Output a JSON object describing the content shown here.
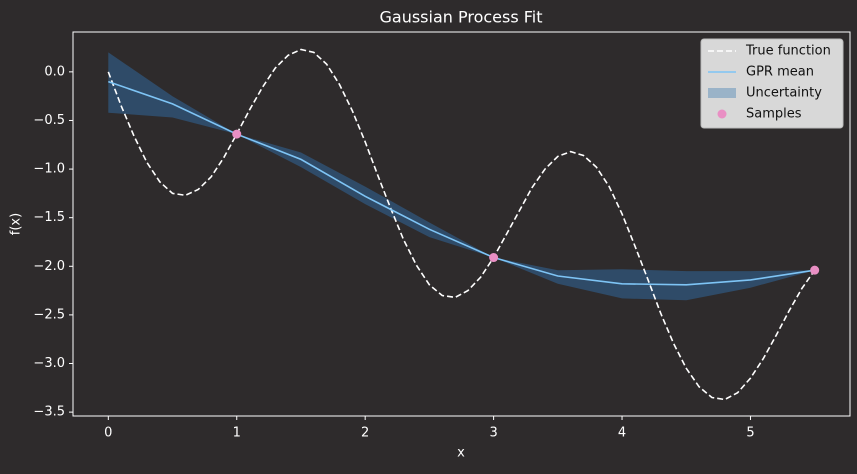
{
  "chart_data": {
    "type": "line",
    "title": "Gaussian Process Fit",
    "xlabel": "x",
    "ylabel": "f(x)",
    "xlim": [
      -0.275,
      5.775
    ],
    "ylim": [
      -3.54,
      0.41
    ],
    "xticks": [
      0,
      1,
      2,
      3,
      4,
      5
    ],
    "yticks": [
      {
        "value": 0,
        "label": "0.0"
      },
      {
        "value": -0.5,
        "label": "−0.5"
      },
      {
        "value": -1,
        "label": "−1.0"
      },
      {
        "value": -1.5,
        "label": "−1.5"
      },
      {
        "value": -2,
        "label": "−2.0"
      },
      {
        "value": -2.5,
        "label": "−2.5"
      },
      {
        "value": -3,
        "label": "−3.0"
      },
      {
        "value": -3.5,
        "label": "−3.5"
      }
    ],
    "legend": "upper right",
    "series": [
      {
        "name": "True function",
        "style": "dashed",
        "color": "#ffffff",
        "x": [
          0,
          0.1,
          0.2,
          0.3,
          0.4,
          0.5,
          0.6,
          0.7,
          0.8,
          0.9,
          1,
          1.1,
          1.2,
          1.3,
          1.4,
          1.5,
          1.6,
          1.7,
          1.8,
          1.9,
          2,
          2.1,
          2.2,
          2.3,
          2.4,
          2.5,
          2.6,
          2.7,
          2.8,
          2.9,
          3,
          3.1,
          3.2,
          3.3,
          3.4,
          3.5,
          3.6,
          3.7,
          3.8,
          3.9,
          4,
          4.1,
          4.2,
          4.3,
          4.4,
          4.5,
          4.6,
          4.7,
          4.8,
          4.9,
          5,
          5.1,
          5.2,
          5.3,
          5.4,
          5.5
        ],
        "values": [
          0,
          -0.35,
          -0.66,
          -0.93,
          -1.13,
          -1.25,
          -1.27,
          -1.21,
          -1.08,
          -0.88,
          -0.64,
          -0.39,
          -0.16,
          0.04,
          0.17,
          0.23,
          0.2,
          0.08,
          -0.13,
          -0.4,
          -0.72,
          -1.07,
          -1.41,
          -1.73,
          -1.99,
          -2.19,
          -2.3,
          -2.32,
          -2.25,
          -2.11,
          -1.91,
          -1.67,
          -1.43,
          -1.19,
          -1,
          -0.87,
          -0.82,
          -0.86,
          -0.98,
          -1.18,
          -1.46,
          -1.79,
          -2.13,
          -2.48,
          -2.79,
          -3.05,
          -3.24,
          -3.35,
          -3.37,
          -3.3,
          -3.15,
          -2.95,
          -2.71,
          -2.46,
          -2.23,
          -2.04
        ]
      },
      {
        "name": "GPR mean",
        "style": "line",
        "color": "#7ec4f5",
        "x": [
          0,
          0.5,
          1,
          1.5,
          2,
          2.5,
          3,
          3.5,
          4,
          4.5,
          5,
          5.5
        ],
        "values": [
          -0.1,
          -0.33,
          -0.64,
          -0.9,
          -1.28,
          -1.62,
          -1.91,
          -2.1,
          -2.18,
          -2.19,
          -2.14,
          -2.04
        ]
      },
      {
        "name": "Uncertainty",
        "style": "band",
        "color": "#2f5478",
        "x": [
          0,
          0.5,
          1,
          1.5,
          2,
          2.5,
          3,
          3.5,
          4,
          4.5,
          5,
          5.5
        ],
        "upper": [
          0.2,
          -0.25,
          -0.64,
          -0.83,
          -1.18,
          -1.55,
          -1.91,
          -2.04,
          -2.03,
          -2.05,
          -2.05,
          -2.04
        ],
        "lower": [
          -0.42,
          -0.47,
          -0.64,
          -0.98,
          -1.36,
          -1.7,
          -1.91,
          -2.18,
          -2.33,
          -2.35,
          -2.22,
          -2.04
        ]
      },
      {
        "name": "Samples",
        "style": "markers",
        "color": "#e98fc4",
        "x": [
          1,
          3,
          5.5
        ],
        "values": [
          -0.64,
          -1.91,
          -2.04
        ]
      }
    ]
  }
}
